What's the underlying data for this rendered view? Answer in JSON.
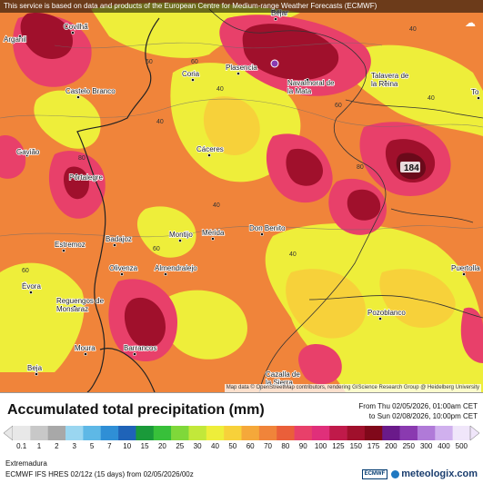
{
  "banner": "This service is based on data and products of the European Centre for Medium-range Weather Forecasts (ECMWF)",
  "map_credit": "Map data © OpenStreetMap contributors, rendering GIScience Research Group @ Heidelberg University",
  "title": "Accumulated total precipitation (mm)",
  "period_from": "From Thu 02/05/2026, 01:00am CET",
  "period_to": "to Sun 02/08/2026, 10:00pm CET",
  "region": "Extremadura",
  "model": "ECMWF IFS HRES 02/12z (15 days) from 02/05/2026/00z",
  "logo_text": "meteologix.com",
  "ecmwf_badge": "ECMWF",
  "scale_values": [
    "0.1",
    "1",
    "2",
    "3",
    "5",
    "7",
    "10",
    "15",
    "20",
    "25",
    "30",
    "40",
    "50",
    "60",
    "70",
    "80",
    "90",
    "100",
    "125",
    "150",
    "175",
    "200",
    "250",
    "300",
    "400",
    "500"
  ],
  "scale_colors": [
    "#e8e8e8",
    "#c8c8c8",
    "#a8a8a8",
    "#9ad6f0",
    "#5eb8e6",
    "#2f8fd6",
    "#1f63b8",
    "#1a9a3a",
    "#38c03a",
    "#7fd83a",
    "#c2e83a",
    "#eeee3a",
    "#f7d13a",
    "#f5a83a",
    "#f0843a",
    "#ea5f3a",
    "#e8406a",
    "#e02f7a",
    "#c01a4a",
    "#a0102c",
    "#80081a",
    "#6a1a8a",
    "#8a3ab0",
    "#b07ad8",
    "#d0b0ee",
    "#f0e6fa"
  ],
  "cities": [
    {
      "name": "Arganil"
    },
    {
      "name": "Covilhã"
    },
    {
      "name": "Béjar"
    },
    {
      "name": "Castelo Branco"
    },
    {
      "name": "Coria"
    },
    {
      "name": "Plasencia"
    },
    {
      "name": "Navalmoral de la Mata"
    },
    {
      "name": "Talavera de la Reina"
    },
    {
      "name": "Cáceres"
    },
    {
      "name": "Portalegre"
    },
    {
      "name": "Gavião"
    },
    {
      "name": "Badajoz"
    },
    {
      "name": "Montijo"
    },
    {
      "name": "Mérida"
    },
    {
      "name": "Don Benito"
    },
    {
      "name": "Estremoz"
    },
    {
      "name": "Olivenza"
    },
    {
      "name": "Almendralejo"
    },
    {
      "name": "Évora"
    },
    {
      "name": "Reguengos de Monsaraz"
    },
    {
      "name": "Moura"
    },
    {
      "name": "Barrancos"
    },
    {
      "name": "Beja"
    },
    {
      "name": "Cazalla de la Sierra"
    },
    {
      "name": "Pozoblanco"
    },
    {
      "name": "Puertolla"
    },
    {
      "name": "To"
    }
  ],
  "peak_value": "184",
  "contour_labels": [
    "40",
    "60",
    "60",
    "40",
    "80",
    "80",
    "40",
    "40",
    "40",
    "60",
    "60",
    "40",
    "60"
  ]
}
